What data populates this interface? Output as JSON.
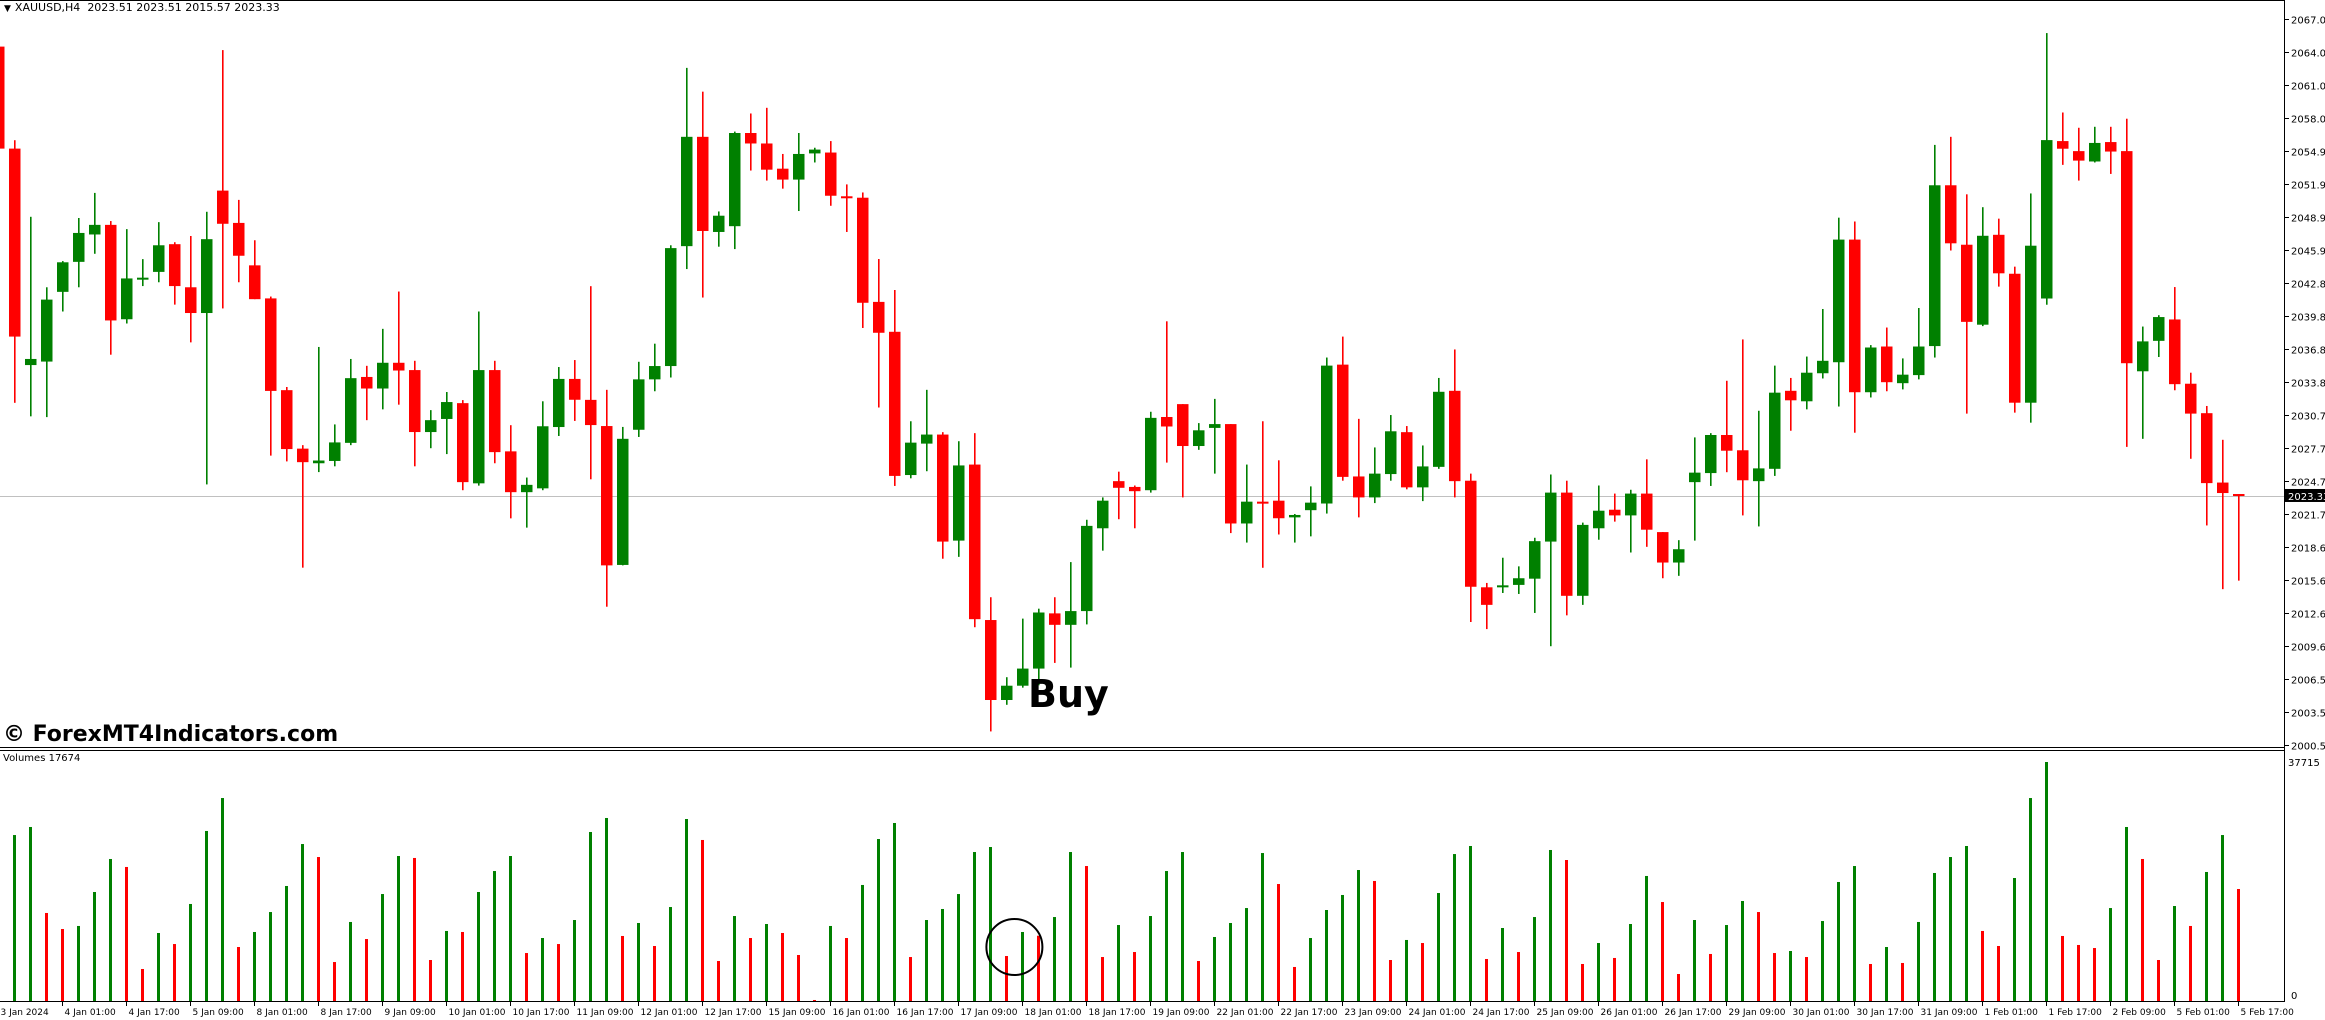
{
  "header": {
    "symbol": "XAUUSD,H4",
    "ohlc": "2023.51 2023.51 2015.57 2023.33",
    "menu_icon": "triangle-down-icon"
  },
  "watermark": "© ForexMT4Indicators.com",
  "annotation": {
    "text": "Buy",
    "circle_on_volume_bar_index": 63
  },
  "volume_panel": {
    "label": "Volumes 17674",
    "max_label": "37715",
    "min_label": "0"
  },
  "colors": {
    "bull": "#008000",
    "bear": "#ff0000",
    "current_price_line": "#c0c0c0",
    "axis": "#000000"
  },
  "chart_data": [
    {
      "type": "candlestick",
      "title": "XAUUSD,H4",
      "current_price": 2023.33,
      "current_price_label": "2023.33",
      "y_ticks": [
        "2067.05",
        "2064.05",
        "2061.00",
        "2058.00",
        "2054.95",
        "2051.95",
        "2048.90",
        "2045.90",
        "2042.85",
        "2039.85",
        "2036.80",
        "2033.80",
        "2030.75",
        "2027.75",
        "2024.70",
        "2021.70",
        "2018.65",
        "2015.65",
        "2012.60",
        "2009.60",
        "2006.55",
        "2003.55",
        "2000.50"
      ],
      "ylim": [
        2000.5,
        2067.05
      ],
      "x_tick_every_n_candles": 4,
      "x_ticks": [
        "3 Jan 2024",
        "4 Jan 01:00",
        "4 Jan 17:00",
        "5 Jan 09:00",
        "8 Jan 01:00",
        "8 Jan 17:00",
        "9 Jan 09:00",
        "10 Jan 01:00",
        "10 Jan 17:00",
        "11 Jan 09:00",
        "12 Jan 01:00",
        "12 Jan 17:00",
        "15 Jan 09:00",
        "16 Jan 01:00",
        "16 Jan 17:00",
        "17 Jan 09:00",
        "18 Jan 01:00",
        "18 Jan 17:00",
        "19 Jan 09:00",
        "22 Jan 01:00",
        "22 Jan 17:00",
        "23 Jan 09:00",
        "24 Jan 01:00",
        "24 Jan 17:00",
        "25 Jan 09:00",
        "26 Jan 01:00",
        "26 Jan 17:00",
        "29 Jan 09:00",
        "30 Jan 01:00",
        "30 Jan 17:00",
        "31 Jan 09:00",
        "1 Feb 01:00",
        "1 Feb 17:00",
        "2 Feb 09:00",
        "5 Feb 01:00",
        "5 Feb 17:00"
      ],
      "ohlc_fields": [
        "open",
        "high",
        "low",
        "close"
      ],
      "candles": [
        [
          2064.52,
          2065.05,
          2054.99,
          2055.17
        ],
        [
          2055.17,
          2055.94,
          2031.87,
          2037.94
        ],
        [
          2035.33,
          2048.92,
          2030.63,
          2035.89
        ],
        [
          2035.65,
          2042.46,
          2030.56,
          2041.33
        ],
        [
          2042.04,
          2044.86,
          2040.24,
          2044.75
        ],
        [
          2044.79,
          2048.81,
          2042.46,
          2047.44
        ],
        [
          2047.3,
          2051.11,
          2045.53,
          2048.18
        ],
        [
          2048.18,
          2048.53,
          2036.28,
          2039.42
        ],
        [
          2039.53,
          2047.79,
          2039.14,
          2043.27
        ],
        [
          2043.24,
          2045.04,
          2042.57,
          2043.34
        ],
        [
          2043.87,
          2048.43,
          2042.92,
          2046.31
        ],
        [
          2046.41,
          2046.59,
          2040.87,
          2042.57
        ],
        [
          2042.46,
          2047.16,
          2037.41,
          2040.1
        ],
        [
          2040.1,
          2049.38,
          2024.39,
          2046.87
        ],
        [
          2051.32,
          2064.2,
          2040.52,
          2048.28
        ],
        [
          2048.36,
          2050.47,
          2042.92,
          2045.35
        ],
        [
          2044.47,
          2046.77,
          2041.37,
          2041.37
        ],
        [
          2041.44,
          2041.61,
          2027.03,
          2032.96
        ],
        [
          2033.03,
          2033.32,
          2026.5,
          2027.63
        ],
        [
          2027.67,
          2027.99,
          2016.76,
          2026.43
        ],
        [
          2026.33,
          2036.99,
          2025.52,
          2026.58
        ],
        [
          2026.54,
          2029.89,
          2026.05,
          2028.24
        ],
        [
          2028.2,
          2035.89,
          2027.99,
          2034.13
        ],
        [
          2034.24,
          2035.26,
          2030.28,
          2033.18
        ],
        [
          2033.18,
          2038.65,
          2031.27,
          2035.54
        ],
        [
          2035.54,
          2042.07,
          2031.7,
          2034.83
        ],
        [
          2034.87,
          2035.72,
          2026.05,
          2029.19
        ],
        [
          2029.19,
          2031.2,
          2027.71,
          2030.28
        ],
        [
          2030.39,
          2032.86,
          2027.17,
          2031.94
        ],
        [
          2031.84,
          2032.12,
          2023.86,
          2024.6
        ],
        [
          2024.49,
          2040.24,
          2024.28,
          2034.87
        ],
        [
          2034.87,
          2035.72,
          2026.33,
          2027.35
        ],
        [
          2027.42,
          2029.82,
          2021.28,
          2023.68
        ],
        [
          2023.68,
          2025.02,
          2020.43,
          2024.35
        ],
        [
          2024.03,
          2032.01,
          2023.86,
          2029.72
        ],
        [
          2029.65,
          2035.15,
          2028.83,
          2034.06
        ],
        [
          2034.06,
          2035.79,
          2030.21,
          2032.15
        ],
        [
          2032.14,
          2042.56,
          2024.86,
          2029.83
        ],
        [
          2029.74,
          2033.06,
          2013.18,
          2016.97
        ],
        [
          2017.01,
          2029.66,
          2016.97,
          2028.57
        ],
        [
          2029.4,
          2035.63,
          2028.74,
          2034.02
        ],
        [
          2034.02,
          2037.29,
          2032.93,
          2035.24
        ],
        [
          2035.24,
          2046.31,
          2034.19,
          2046.05
        ],
        [
          2046.23,
          2062.57,
          2044.13,
          2056.25
        ],
        [
          2056.25,
          2060.39,
          2041.52,
          2047.62
        ],
        [
          2047.53,
          2049.41,
          2046.18,
          2049.02
        ],
        [
          2048.06,
          2056.73,
          2045.96,
          2056.6
        ],
        [
          2056.6,
          2058.39,
          2053.16,
          2055.64
        ],
        [
          2055.64,
          2058.91,
          2052.24,
          2053.24
        ],
        [
          2053.33,
          2054.68,
          2051.5,
          2052.33
        ],
        [
          2052.33,
          2056.6,
          2049.45,
          2054.68
        ],
        [
          2054.73,
          2055.25,
          2053.9,
          2055.08
        ],
        [
          2054.81,
          2055.86,
          2049.93,
          2050.85
        ],
        [
          2050.8,
          2051.89,
          2047.53,
          2050.67
        ],
        [
          2050.67,
          2051.15,
          2038.73,
          2041.04
        ],
        [
          2041.12,
          2045.05,
          2031.44,
          2038.29
        ],
        [
          2038.38,
          2042.21,
          2024.25,
          2025.17
        ],
        [
          2025.25,
          2030.18,
          2024.95,
          2028.22
        ],
        [
          2028.13,
          2033.06,
          2025.6,
          2028.96
        ],
        [
          2028.96,
          2029.18,
          2017.58,
          2019.15
        ],
        [
          2019.24,
          2028.35,
          2017.75,
          2026.13
        ],
        [
          2026.21,
          2029.09,
          2011.3,
          2012.04
        ],
        [
          2011.96,
          2014.05,
          2001.75,
          2004.63
        ],
        [
          2004.63,
          2006.72,
          2004.19,
          2005.94
        ],
        [
          2005.94,
          2012.09,
          2005.76,
          2007.51
        ],
        [
          2007.51,
          2013.0,
          2005.98,
          2012.65
        ],
        [
          2012.57,
          2014.05,
          2008.03,
          2011.52
        ],
        [
          2011.52,
          2017.27,
          2007.6,
          2012.78
        ],
        [
          2012.78,
          2021.15,
          2011.56,
          2020.59
        ],
        [
          2020.37,
          2023.2,
          2018.32,
          2022.9
        ],
        [
          2024.69,
          2025.56,
          2021.2,
          2024.08
        ],
        [
          2024.16,
          2024.29,
          2020.37,
          2023.77
        ],
        [
          2023.86,
          2031.05,
          2023.64,
          2030.49
        ],
        [
          2030.57,
          2039.34,
          2026.39,
          2029.7
        ],
        [
          2031.75,
          2031.75,
          2023.2,
          2027.91
        ],
        [
          2027.91,
          2030.01,
          2027.56,
          2029.35
        ],
        [
          2029.57,
          2032.23,
          2025.38,
          2029.92
        ],
        [
          2029.92,
          2029.92,
          2019.93,
          2020.81
        ],
        [
          2020.81,
          2026.21,
          2019.06,
          2022.81
        ],
        [
          2022.81,
          2030.18,
          2016.75,
          2022.68
        ],
        [
          2022.9,
          2026.6,
          2019.8,
          2021.29
        ],
        [
          2021.37,
          2021.68,
          2019.06,
          2021.59
        ],
        [
          2022.03,
          2024.21,
          2019.63,
          2022.72
        ],
        [
          2022.64,
          2036.02,
          2021.72,
          2035.28
        ],
        [
          2035.37,
          2037.94,
          2024.73,
          2025.08
        ],
        [
          2025.12,
          2030.4,
          2021.37,
          2023.2
        ],
        [
          2023.2,
          2027.78,
          2022.68,
          2025.38
        ],
        [
          2025.34,
          2030.75,
          2024.73,
          2029.26
        ],
        [
          2029.18,
          2029.74,
          2023.94,
          2024.12
        ],
        [
          2024.12,
          2027.96,
          2022.86,
          2026.04
        ],
        [
          2026.0,
          2034.15,
          2025.82,
          2032.88
        ],
        [
          2032.97,
          2036.76,
          2023.2,
          2024.69
        ],
        [
          2024.73,
          2025.38,
          2011.78,
          2015.01
        ],
        [
          2014.96,
          2015.36,
          2011.13,
          2013.35
        ],
        [
          2014.96,
          2017.67,
          2014.44,
          2015.14
        ],
        [
          2015.18,
          2016.88,
          2014.35,
          2015.79
        ],
        [
          2015.75,
          2019.5,
          2012.61,
          2019.19
        ],
        [
          2019.15,
          2025.3,
          2009.56,
          2023.64
        ],
        [
          2023.64,
          2024.73,
          2012.39,
          2014.18
        ],
        [
          2014.18,
          2020.89,
          2013.35,
          2020.68
        ],
        [
          2020.37,
          2024.29,
          2019.32,
          2021.98
        ],
        [
          2022.07,
          2023.55,
          2020.98,
          2021.55
        ],
        [
          2021.55,
          2023.9,
          2018.15,
          2023.55
        ],
        [
          2023.55,
          2026.69,
          2018.67,
          2020.24
        ],
        [
          2020.02,
          2020.02,
          2015.79,
          2017.23
        ],
        [
          2017.23,
          2019.28,
          2016.01,
          2018.45
        ],
        [
          2024.6,
          2028.7,
          2019.24,
          2025.47
        ],
        [
          2025.43,
          2029.09,
          2024.25,
          2028.92
        ],
        [
          2028.92,
          2033.89,
          2025.51,
          2027.48
        ],
        [
          2027.52,
          2037.68,
          2021.55,
          2024.77
        ],
        [
          2024.69,
          2031.14,
          2020.54,
          2025.86
        ],
        [
          2025.82,
          2035.28,
          2025.17,
          2032.8
        ],
        [
          2032.97,
          2034.15,
          2029.31,
          2032.1
        ],
        [
          2032.01,
          2036.11,
          2031.27,
          2034.63
        ],
        [
          2034.58,
          2040.47,
          2034.1,
          2035.72
        ],
        [
          2035.59,
          2048.84,
          2031.53,
          2046.83
        ],
        [
          2046.83,
          2048.49,
          2029.13,
          2032.84
        ],
        [
          2032.84,
          2037.16,
          2032.36,
          2036.94
        ],
        [
          2037.03,
          2038.77,
          2032.93,
          2033.76
        ],
        [
          2033.67,
          2035.94,
          2033.1,
          2034.45
        ],
        [
          2034.41,
          2040.56,
          2034.02,
          2037.03
        ],
        [
          2037.07,
          2055.51,
          2036.02,
          2051.81
        ],
        [
          2051.81,
          2056.25,
          2045.83,
          2046.49
        ],
        [
          2046.36,
          2050.98,
          2030.88,
          2039.29
        ],
        [
          2039.03,
          2049.8,
          2038.9,
          2047.18
        ],
        [
          2047.27,
          2048.75,
          2042.52,
          2043.74
        ],
        [
          2043.7,
          2044.35,
          2030.97,
          2031.88
        ],
        [
          2031.88,
          2051.06,
          2030.05,
          2046.27
        ],
        [
          2041.43,
          2065.76,
          2040.86,
          2055.95
        ],
        [
          2055.86,
          2058.48,
          2053.68,
          2055.16
        ],
        [
          2054.94,
          2057.08,
          2052.24,
          2054.07
        ],
        [
          2053.99,
          2057.17,
          2053.9,
          2055.69
        ],
        [
          2055.77,
          2057.17,
          2052.85,
          2054.9
        ],
        [
          2054.94,
          2057.91,
          2027.83,
          2035.5
        ],
        [
          2034.76,
          2038.86,
          2028.57,
          2037.5
        ],
        [
          2037.55,
          2039.9,
          2036.07,
          2039.73
        ],
        [
          2039.51,
          2042.48,
          2033.02,
          2033.58
        ],
        [
          2033.62,
          2034.63,
          2026.74,
          2030.88
        ],
        [
          2030.92,
          2031.58,
          2020.63,
          2024.51
        ],
        [
          2024.56,
          2028.48,
          2014.79,
          2023.6
        ],
        [
          2023.51,
          2023.51,
          2015.57,
          2023.33
        ]
      ]
    },
    {
      "type": "bar",
      "title": "Volumes 17674",
      "ylim": [
        0,
        37715
      ],
      "color_rule": "green when volume rises vs previous bar, red when it falls",
      "values": [
        null,
        26190,
        27460,
        13890,
        11360,
        11840,
        17200,
        22410,
        21150,
        5050,
        10730,
        8990,
        15310,
        26830,
        32030,
        8520,
        10890,
        14040,
        18150,
        24770,
        22720,
        6150,
        12470,
        9780,
        16880,
        22880,
        22570,
        6470,
        11050,
        10890,
        17200,
        20510,
        22880,
        7570,
        9940,
        8990,
        12780,
        26670,
        28880,
        10260,
        12310,
        8680,
        14830,
        28720,
        25410,
        6310,
        13410,
        9940,
        12150,
        10730,
        7260,
        160,
        11840,
        9940,
        18310,
        25560,
        28090,
        6940,
        12780,
        14520,
        16880,
        23510,
        24300,
        7100,
        10890,
        10300,
        13250,
        23510,
        21300,
        6940,
        11990,
        7730,
        13410,
        20510,
        23510,
        6310,
        10100,
        12310,
        14670,
        23350,
        18460,
        5370,
        9940,
        14360,
        16730,
        20670,
        18940,
        6470,
        9630,
        9150,
        17040,
        23190,
        24460,
        6630,
        11520,
        7730,
        13250,
        23830,
        22250,
        5840,
        9150,
        6790,
        12150,
        19730,
        15620,
        4260,
        12780,
        7420,
        11990,
        15780,
        14040,
        7570,
        7890,
        6940,
        12620,
        18780,
        21300,
        5840,
        8520,
        6000,
        12470,
        20200,
        22720,
        24460,
        11050,
        8680,
        19410,
        32030,
        37715,
        10260,
        8840,
        8360,
        14670,
        27460,
        22410,
        6470,
        14990,
        11840,
        20360,
        26190,
        17674
      ]
    }
  ]
}
